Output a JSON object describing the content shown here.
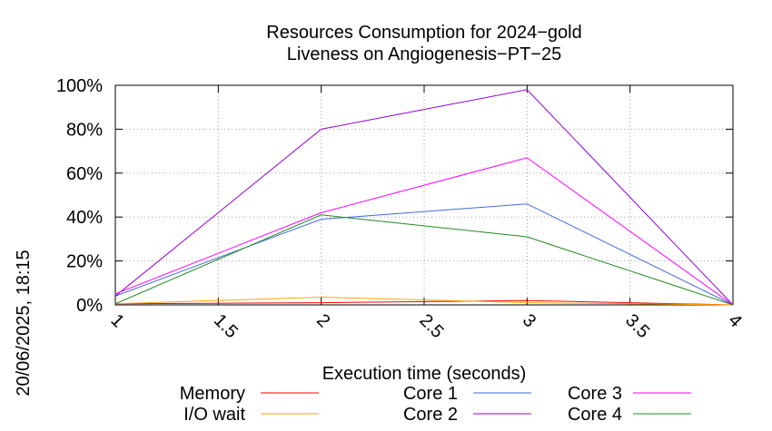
{
  "side_label": "20/06/2025, 18:15",
  "chart_data": {
    "type": "line",
    "title_line1": "Resources Consumption for 2024−gold",
    "title_line2": "Liveness on Angiogenesis−PT−25",
    "xlabel": "Execution time (seconds)",
    "xlim": [
      1,
      4
    ],
    "ylim": [
      0,
      100
    ],
    "x_ticks": [
      "1",
      "1.5",
      "2",
      "2.5",
      "3",
      "3.5",
      "4"
    ],
    "y_ticks": [
      "0%",
      "20%",
      "40%",
      "60%",
      "80%",
      "100%"
    ],
    "grid": true,
    "legend_position": "bottom",
    "series": [
      {
        "name": "Memory",
        "color": "#ff0000",
        "x": [
          1,
          2,
          3,
          4
        ],
        "values": [
          0.5,
          1,
          2,
          0
        ]
      },
      {
        "name": "I/O wait",
        "color": "#ffa500",
        "x": [
          1,
          2,
          3,
          4
        ],
        "values": [
          0.5,
          3.5,
          1,
          0
        ]
      },
      {
        "name": "Core 1",
        "color": "#4169e1",
        "x": [
          1,
          2,
          3,
          4
        ],
        "values": [
          4,
          39,
          46,
          0
        ]
      },
      {
        "name": "Core 2",
        "color": "#9400d3",
        "x": [
          1,
          2,
          3,
          4
        ],
        "values": [
          4,
          80,
          98,
          0
        ]
      },
      {
        "name": "Core 3",
        "color": "#ff00ff",
        "x": [
          1,
          2,
          3,
          4
        ],
        "values": [
          5,
          42,
          67,
          0
        ]
      },
      {
        "name": "Core 4",
        "color": "#228b22",
        "x": [
          1,
          2,
          3,
          4
        ],
        "values": [
          0.5,
          41,
          31,
          0
        ]
      }
    ]
  }
}
